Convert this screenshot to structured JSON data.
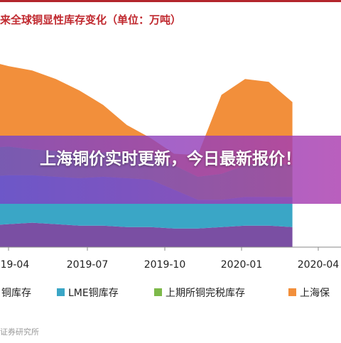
{
  "banner": {
    "headline": "上海铜价实时更新，今日最新报价！"
  },
  "source": "证券研究所",
  "chart_data": {
    "type": "area",
    "title": "来全球铜显性库存变化（单位：万吨）",
    "xlabel": "",
    "ylabel": "",
    "x_ticks": [
      "2019-04",
      "2019-07",
      "2019-10",
      "2020-01",
      "2020-04"
    ],
    "stacked": true,
    "legend_position": "bottom",
    "series": [
      {
        "name": "铜库存",
        "color": "#7a4fa3"
      },
      {
        "name": "LME铜库存",
        "color": "#3aa6c6"
      },
      {
        "name": "上期所铜完税库存",
        "color": "#7db94a"
      },
      {
        "name": "上海保",
        "color": "#f28f3b"
      }
    ],
    "x": [
      2019.15,
      2019.25,
      2019.35,
      2019.45,
      2019.55,
      2019.65,
      2019.75,
      2019.85,
      2019.95,
      2020.05,
      2020.15,
      2020.25,
      2020.35,
      2020.45
    ],
    "stack_values": [
      [
        15,
        16,
        17,
        16,
        15,
        15,
        14,
        14,
        13,
        13,
        14,
        15,
        15,
        14
      ],
      [
        34,
        34,
        33,
        33,
        33,
        34,
        34,
        33,
        27,
        20,
        19,
        20,
        20,
        21
      ],
      [
        20,
        20,
        18,
        18,
        17,
        17,
        17,
        18,
        17,
        16,
        18,
        22,
        24,
        22
      ],
      [
        61,
        56,
        55,
        50,
        44,
        33,
        20,
        11,
        8,
        15,
        55,
        60,
        56,
        44
      ]
    ]
  },
  "colors": {
    "accent": "#c0292f"
  }
}
